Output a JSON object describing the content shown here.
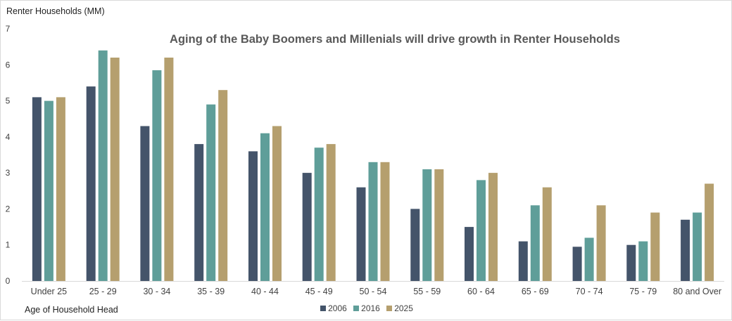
{
  "chart_data": {
    "type": "bar",
    "title": "Aging of the Baby Boomers and Millenials will drive growth in Renter Households",
    "ylabel": "Renter Households (MM)",
    "xlabel": "Age of Household Head",
    "ylim": [
      0,
      7
    ],
    "yticks": [
      0,
      1,
      2,
      3,
      4,
      5,
      6,
      7
    ],
    "grid": false,
    "legend_position": "bottom",
    "categories": [
      "Under 25",
      "25 - 29",
      "30 - 34",
      "35 - 39",
      "40 - 44",
      "45 - 49",
      "50 - 54",
      "55 - 59",
      "60 - 64",
      "65 - 69",
      "70 - 74",
      "75 - 79",
      "80 and Over"
    ],
    "series": [
      {
        "name": "2006",
        "color": "#44546a",
        "values": [
          5.1,
          5.4,
          4.3,
          3.8,
          3.6,
          3.0,
          2.6,
          2.0,
          1.5,
          1.1,
          0.95,
          1.0,
          1.7
        ]
      },
      {
        "name": "2016",
        "color": "#5f9e99",
        "values": [
          5.0,
          6.4,
          5.85,
          4.9,
          4.1,
          3.7,
          3.3,
          3.1,
          2.8,
          2.1,
          1.2,
          1.1,
          1.9
        ]
      },
      {
        "name": "2025",
        "color": "#b59f6e",
        "values": [
          5.1,
          6.2,
          6.2,
          5.3,
          4.3,
          3.8,
          3.3,
          3.1,
          3.0,
          2.6,
          2.1,
          1.9,
          2.7
        ]
      }
    ]
  }
}
